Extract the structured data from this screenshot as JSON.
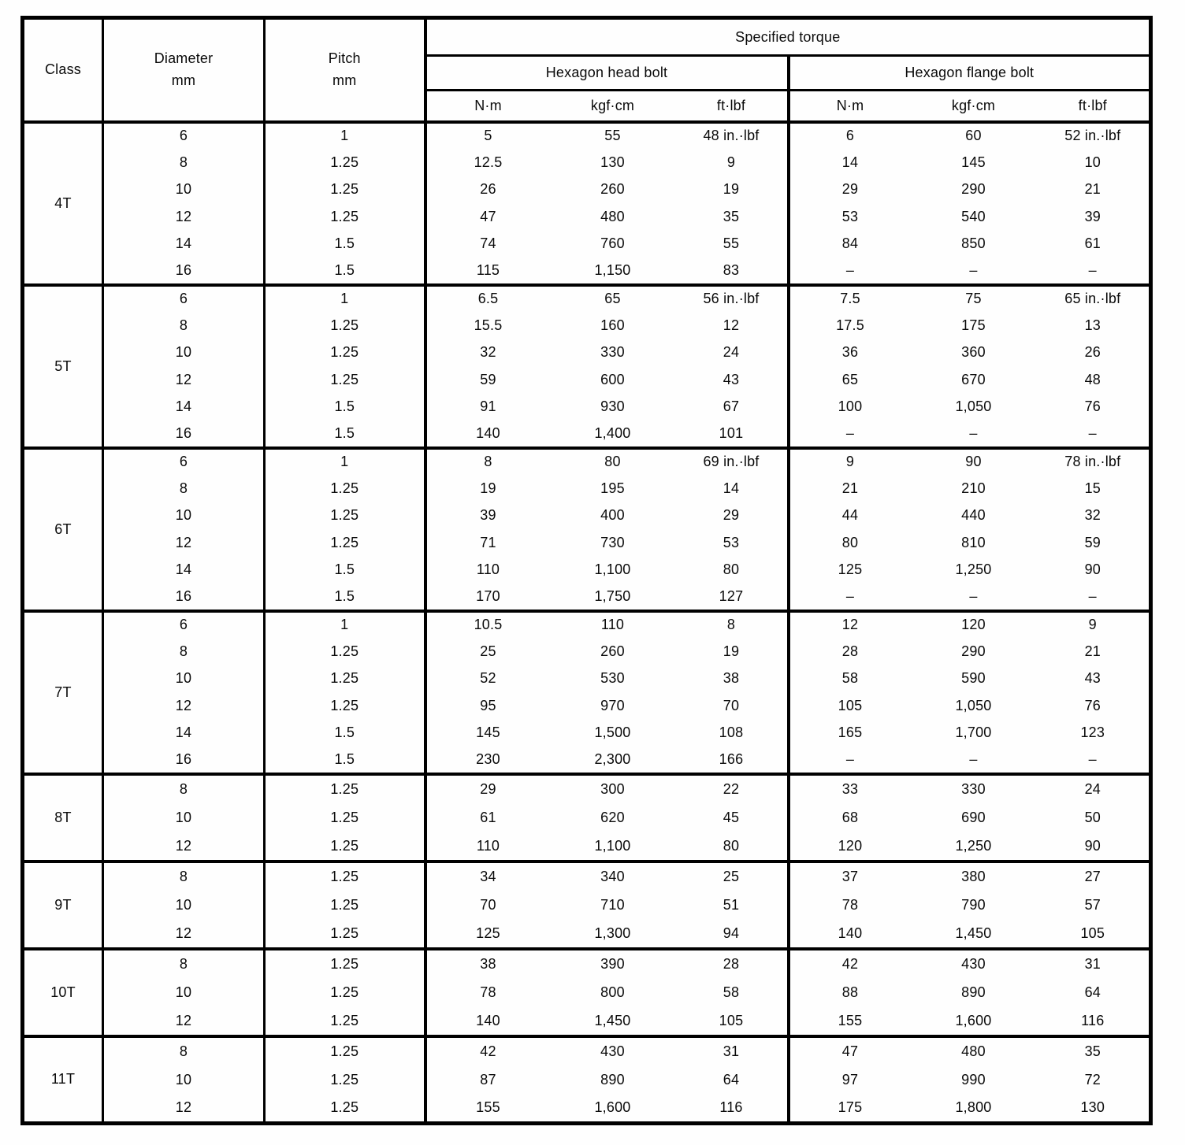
{
  "table": {
    "columns": {
      "class": "Class",
      "diameter_line1": "Diameter",
      "diameter_line2": "mm",
      "pitch_line1": "Pitch",
      "pitch_line2": "mm",
      "specified_torque": "Specified torque",
      "head_bolt": "Hexagon head bolt",
      "flange_bolt": "Hexagon flange bolt",
      "units": [
        "N·m",
        "kgf·cm",
        "ft·lbf",
        "N·m",
        "kgf·cm",
        "ft·lbf"
      ]
    },
    "groups": [
      {
        "class": "4T",
        "rows": [
          [
            "6",
            "1",
            "5",
            "55",
            "48 in.·lbf",
            "6",
            "60",
            "52 in.·lbf"
          ],
          [
            "8",
            "1.25",
            "12.5",
            "130",
            "9",
            "14",
            "145",
            "10"
          ],
          [
            "10",
            "1.25",
            "26",
            "260",
            "19",
            "29",
            "290",
            "21"
          ],
          [
            "12",
            "1.25",
            "47",
            "480",
            "35",
            "53",
            "540",
            "39"
          ],
          [
            "14",
            "1.5",
            "74",
            "760",
            "55",
            "84",
            "850",
            "61"
          ],
          [
            "16",
            "1.5",
            "115",
            "1,150",
            "83",
            "–",
            "–",
            "–"
          ]
        ]
      },
      {
        "class": "5T",
        "rows": [
          [
            "6",
            "1",
            "6.5",
            "65",
            "56 in.·lbf",
            "7.5",
            "75",
            "65 in.·lbf"
          ],
          [
            "8",
            "1.25",
            "15.5",
            "160",
            "12",
            "17.5",
            "175",
            "13"
          ],
          [
            "10",
            "1.25",
            "32",
            "330",
            "24",
            "36",
            "360",
            "26"
          ],
          [
            "12",
            "1.25",
            "59",
            "600",
            "43",
            "65",
            "670",
            "48"
          ],
          [
            "14",
            "1.5",
            "91",
            "930",
            "67",
            "100",
            "1,050",
            "76"
          ],
          [
            "16",
            "1.5",
            "140",
            "1,400",
            "101",
            "–",
            "–",
            "–"
          ]
        ]
      },
      {
        "class": "6T",
        "rows": [
          [
            "6",
            "1",
            "8",
            "80",
            "69 in.·lbf",
            "9",
            "90",
            "78 in.·lbf"
          ],
          [
            "8",
            "1.25",
            "19",
            "195",
            "14",
            "21",
            "210",
            "15"
          ],
          [
            "10",
            "1.25",
            "39",
            "400",
            "29",
            "44",
            "440",
            "32"
          ],
          [
            "12",
            "1.25",
            "71",
            "730",
            "53",
            "80",
            "810",
            "59"
          ],
          [
            "14",
            "1.5",
            "110",
            "1,100",
            "80",
            "125",
            "1,250",
            "90"
          ],
          [
            "16",
            "1.5",
            "170",
            "1,750",
            "127",
            "–",
            "–",
            "–"
          ]
        ]
      },
      {
        "class": "7T",
        "rows": [
          [
            "6",
            "1",
            "10.5",
            "110",
            "8",
            "12",
            "120",
            "9"
          ],
          [
            "8",
            "1.25",
            "25",
            "260",
            "19",
            "28",
            "290",
            "21"
          ],
          [
            "10",
            "1.25",
            "52",
            "530",
            "38",
            "58",
            "590",
            "43"
          ],
          [
            "12",
            "1.25",
            "95",
            "970",
            "70",
            "105",
            "1,050",
            "76"
          ],
          [
            "14",
            "1.5",
            "145",
            "1,500",
            "108",
            "165",
            "1,700",
            "123"
          ],
          [
            "16",
            "1.5",
            "230",
            "2,300",
            "166",
            "–",
            "–",
            "–"
          ]
        ]
      },
      {
        "class": "8T",
        "rows": [
          [
            "8",
            "1.25",
            "29",
            "300",
            "22",
            "33",
            "330",
            "24"
          ],
          [
            "10",
            "1.25",
            "61",
            "620",
            "45",
            "68",
            "690",
            "50"
          ],
          [
            "12",
            "1.25",
            "110",
            "1,100",
            "80",
            "120",
            "1,250",
            "90"
          ]
        ]
      },
      {
        "class": "9T",
        "rows": [
          [
            "8",
            "1.25",
            "34",
            "340",
            "25",
            "37",
            "380",
            "27"
          ],
          [
            "10",
            "1.25",
            "70",
            "710",
            "51",
            "78",
            "790",
            "57"
          ],
          [
            "12",
            "1.25",
            "125",
            "1,300",
            "94",
            "140",
            "1,450",
            "105"
          ]
        ]
      },
      {
        "class": "10T",
        "rows": [
          [
            "8",
            "1.25",
            "38",
            "390",
            "28",
            "42",
            "430",
            "31"
          ],
          [
            "10",
            "1.25",
            "78",
            "800",
            "58",
            "88",
            "890",
            "64"
          ],
          [
            "12",
            "1.25",
            "140",
            "1,450",
            "105",
            "155",
            "1,600",
            "116"
          ]
        ]
      },
      {
        "class": "11T",
        "rows": [
          [
            "8",
            "1.25",
            "42",
            "430",
            "31",
            "47",
            "480",
            "35"
          ],
          [
            "10",
            "1.25",
            "87",
            "890",
            "64",
            "97",
            "990",
            "72"
          ],
          [
            "12",
            "1.25",
            "155",
            "1,600",
            "116",
            "175",
            "1,800",
            "130"
          ]
        ]
      }
    ]
  }
}
